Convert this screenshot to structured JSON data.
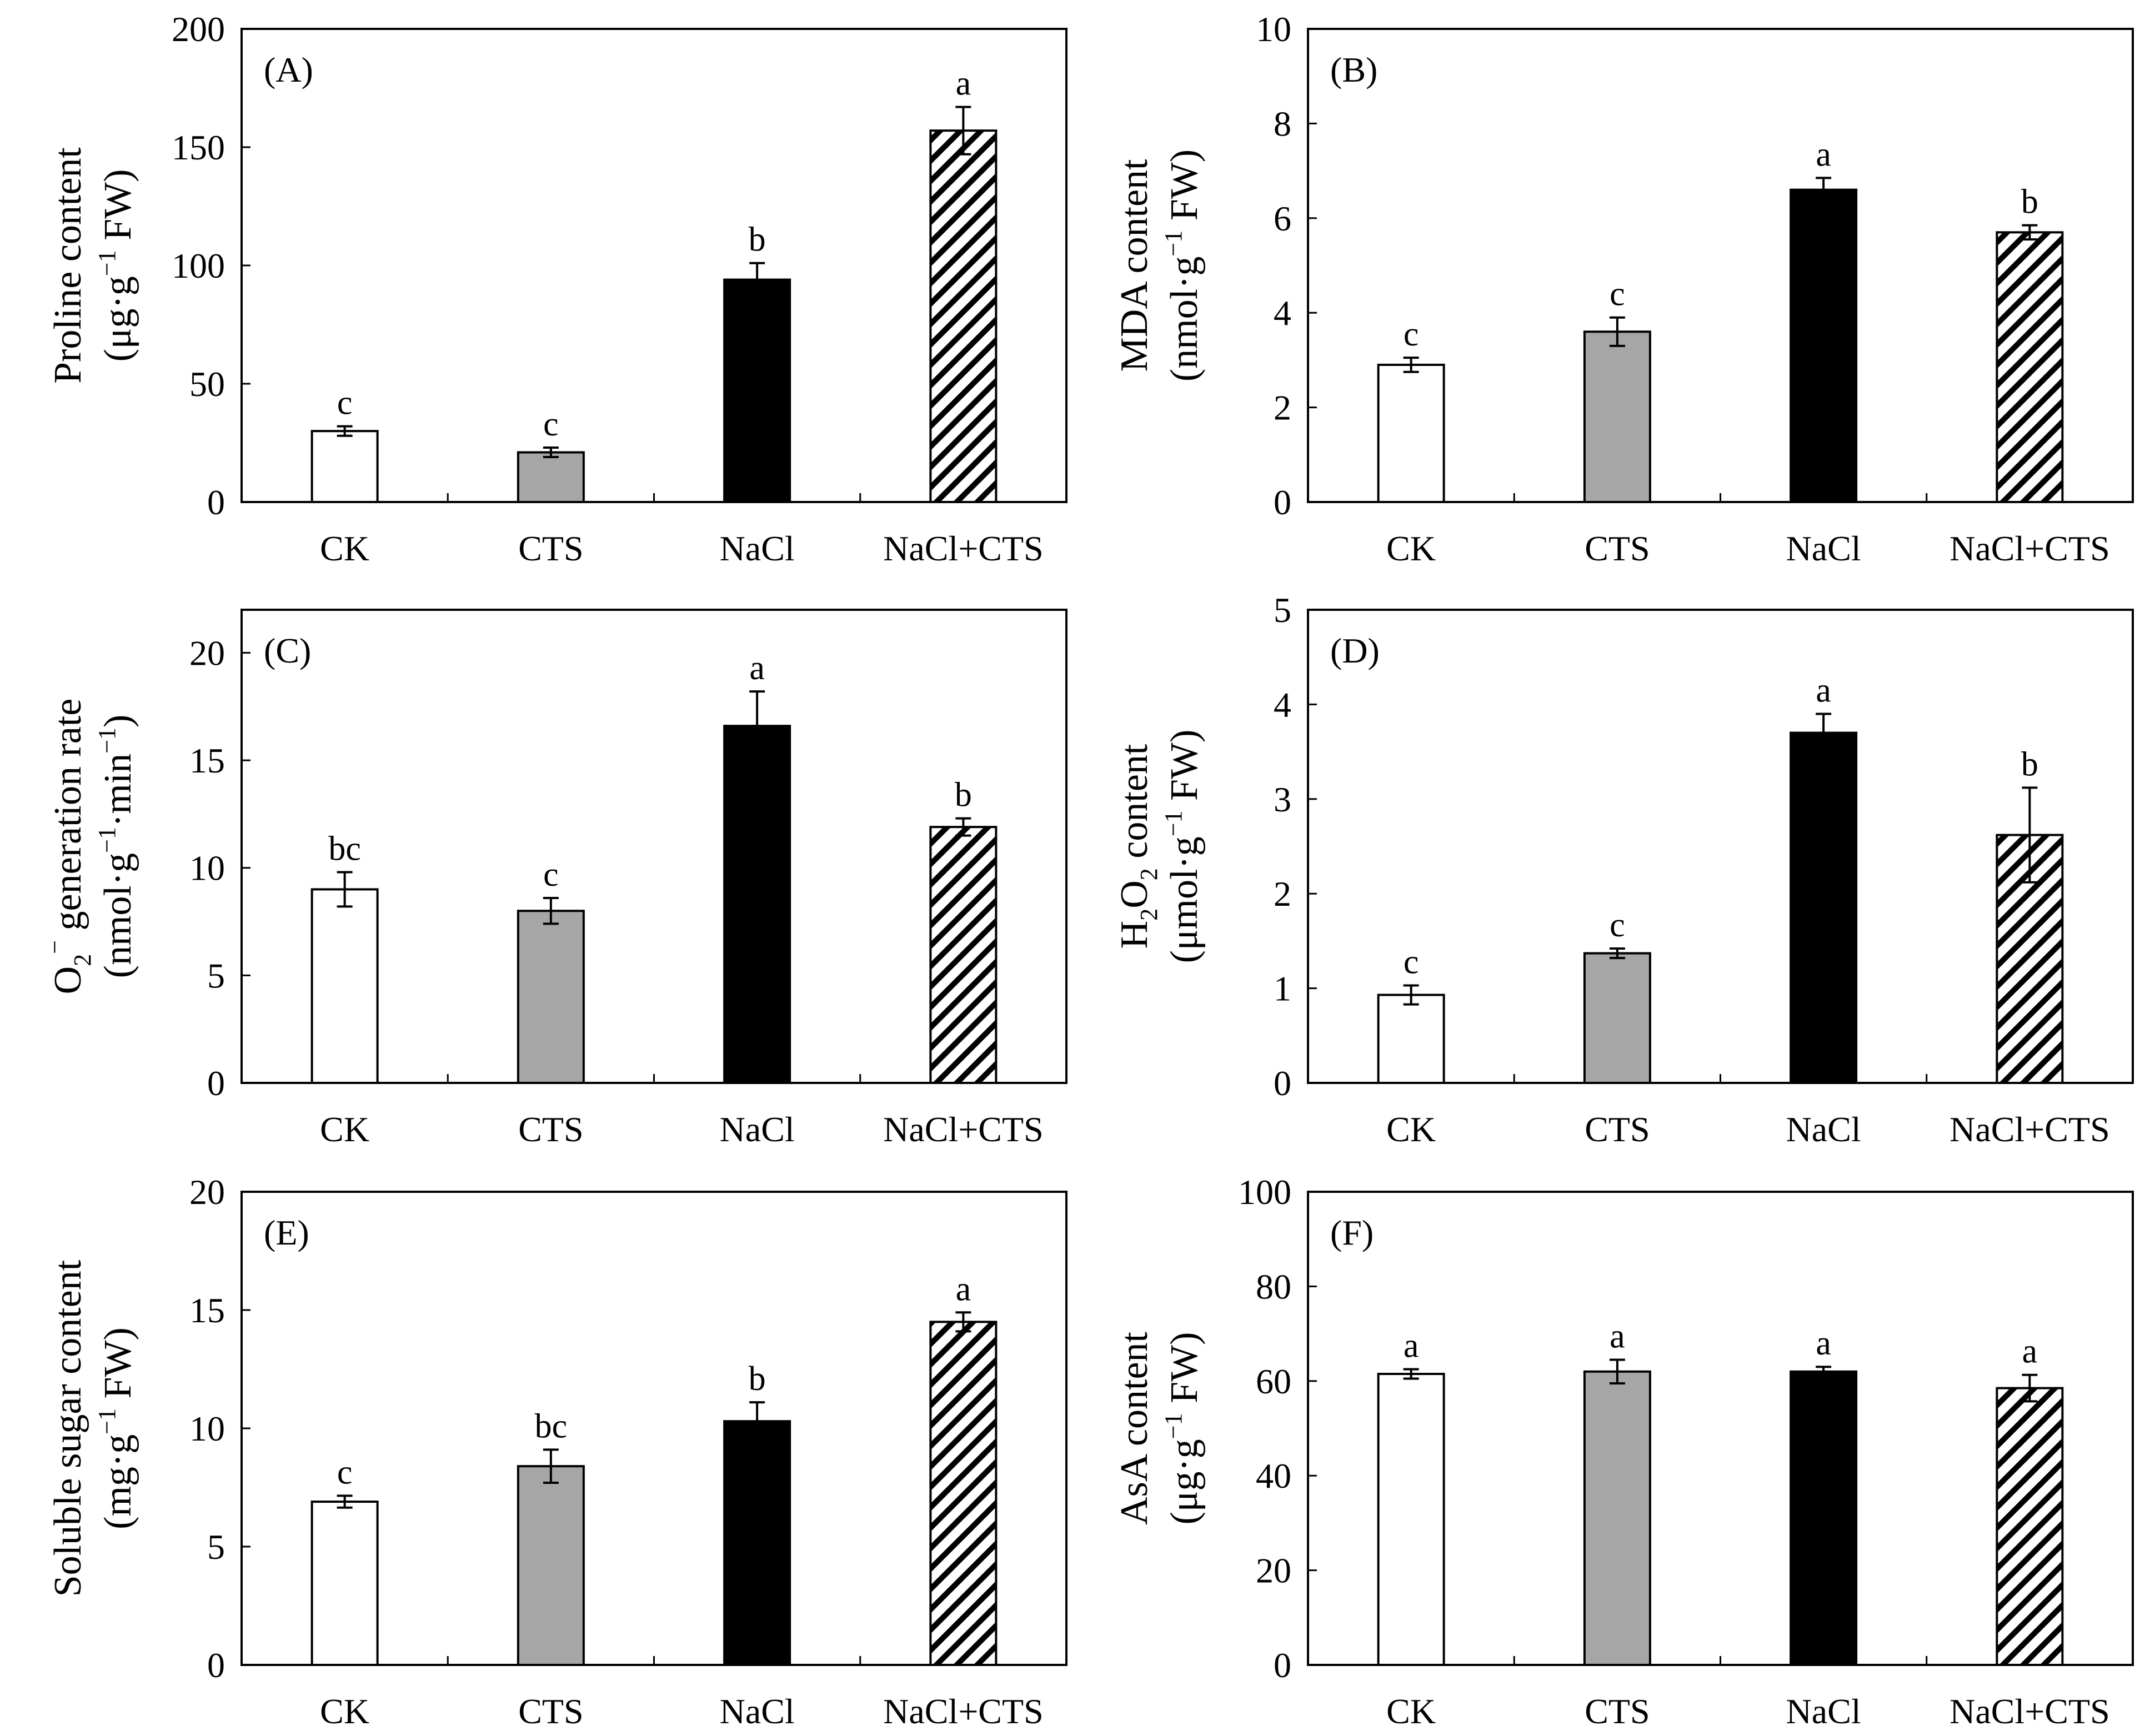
{
  "colors": {
    "ck": "#ffffff",
    "cts": "#a6a6a6",
    "nacl": "#000000",
    "nacl_cts_hatch": "#000000",
    "axis": "#000000"
  },
  "chart_data": [
    {
      "type": "bar",
      "panel": "(A)",
      "categories": [
        "CK",
        "CTS",
        "NaCl",
        "NaCl+CTS"
      ],
      "values": [
        30,
        21,
        94,
        157
      ],
      "errors": [
        2,
        2,
        7,
        10
      ],
      "significance": [
        "c",
        "c",
        "b",
        "a"
      ],
      "ylim": [
        0,
        200
      ],
      "yticks": [
        "0",
        "50",
        "100",
        "150",
        "200"
      ],
      "ylabel": {
        "line1": "Proline content",
        "line2_pre": "(μg·g",
        "line2_sup": "−1",
        "line2_post": " FW)"
      }
    },
    {
      "type": "bar",
      "panel": "(B)",
      "categories": [
        "CK",
        "CTS",
        "NaCl",
        "NaCl+CTS"
      ],
      "values": [
        2.9,
        3.6,
        6.6,
        5.7
      ],
      "errors": [
        0.15,
        0.3,
        0.25,
        0.15
      ],
      "significance": [
        "c",
        "c",
        "a",
        "b"
      ],
      "ylim": [
        0,
        10
      ],
      "yticks": [
        "0",
        "2",
        "4",
        "6",
        "8",
        "10"
      ],
      "ylabel": {
        "line1": "MDA content",
        "line2_pre": "(nmol·g",
        "line2_sup": "−1",
        "line2_post": " FW)"
      }
    },
    {
      "type": "bar",
      "panel": "(C)",
      "categories": [
        "CK",
        "CTS",
        "NaCl",
        "NaCl+CTS"
      ],
      "values": [
        9.0,
        8.0,
        16.6,
        11.9
      ],
      "errors": [
        0.8,
        0.6,
        1.6,
        0.4
      ],
      "significance": [
        "bc",
        "c",
        "a",
        "b"
      ],
      "ylim": [
        0,
        22
      ],
      "yticks": [
        "0",
        "5",
        "10",
        "15",
        "20"
      ],
      "ylabel": {
        "line1_pre": "O",
        "line1_sub": "2",
        "line1_sup": "−",
        "line1_post": " generation rate",
        "line2_pre": "(nmol·g",
        "line2_sup": "−1",
        "line2_mid": "·min",
        "line2_sup2": "−1",
        "line2_post": ")"
      }
    },
    {
      "type": "bar",
      "panel": "(D)",
      "categories": [
        "CK",
        "CTS",
        "NaCl",
        "NaCl+CTS"
      ],
      "values": [
        0.93,
        1.37,
        3.7,
        2.62
      ],
      "errors": [
        0.1,
        0.05,
        0.2,
        0.5
      ],
      "significance": [
        "c",
        "c",
        "a",
        "b"
      ],
      "ylim": [
        0,
        5
      ],
      "yticks": [
        "0",
        "1",
        "2",
        "3",
        "4",
        "5"
      ],
      "ylabel": {
        "line1_pre": "H",
        "line1_sub": "2",
        "line1_mid": "O",
        "line1_sub2": "2",
        "line1_post": " content",
        "line2_pre": "(μmol·g",
        "line2_sup": "−1",
        "line2_post": " FW)"
      }
    },
    {
      "type": "bar",
      "panel": "(E)",
      "categories": [
        "CK",
        "CTS",
        "NaCl",
        "NaCl+CTS"
      ],
      "values": [
        6.9,
        8.4,
        10.3,
        14.5
      ],
      "errors": [
        0.25,
        0.7,
        0.8,
        0.4
      ],
      "significance": [
        "c",
        "bc",
        "b",
        "a"
      ],
      "ylim": [
        0,
        20
      ],
      "yticks": [
        "0",
        "5",
        "10",
        "15",
        "20"
      ],
      "ylabel": {
        "line1": "Soluble sugar content",
        "line2_pre": "(mg·g",
        "line2_sup": "−1",
        "line2_post": " FW)"
      }
    },
    {
      "type": "bar",
      "panel": "(F)",
      "categories": [
        "CK",
        "CTS",
        "NaCl",
        "NaCl+CTS"
      ],
      "values": [
        61.5,
        62.0,
        62.0,
        58.5
      ],
      "errors": [
        1.0,
        2.5,
        1.0,
        2.8
      ],
      "significance": [
        "a",
        "a",
        "a",
        "a"
      ],
      "ylim": [
        0,
        100
      ],
      "yticks": [
        "0",
        "20",
        "40",
        "60",
        "80",
        "100"
      ],
      "ylabel": {
        "line1": "AsA content",
        "line2_pre": "(μg·g",
        "line2_sup": "−1",
        "line2_post": " FW)"
      }
    }
  ]
}
